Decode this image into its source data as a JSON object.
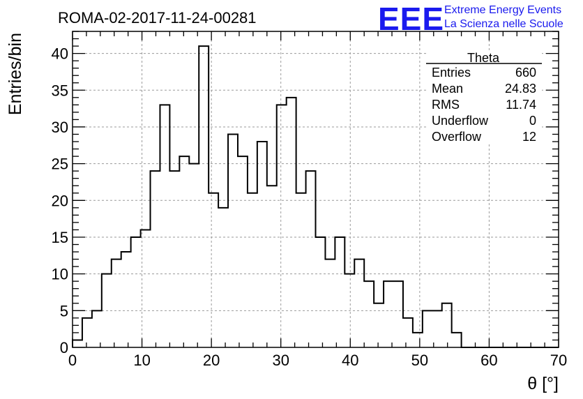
{
  "title": "ROMA-02-2017-11-24-00281",
  "logo": {
    "mark": "EEE",
    "line1": "Extreme Energy Events",
    "line2": "La Scienza nelle Scuole",
    "color": "#1a1aee"
  },
  "stats": {
    "name": "Theta",
    "rows": [
      {
        "label": "Entries",
        "value": "660"
      },
      {
        "label": "Mean",
        "value": "24.83"
      },
      {
        "label": "RMS",
        "value": "11.74"
      },
      {
        "label": "Underflow",
        "value": "0"
      },
      {
        "label": "Overflow",
        "value": "12"
      }
    ]
  },
  "chart_data": {
    "type": "bar",
    "histogram": true,
    "xlabel": "θ [°]",
    "ylabel": "Entries/bin",
    "xlim": [
      0,
      70
    ],
    "ylim": [
      0,
      43
    ],
    "bin_width": 1.4,
    "values": [
      1,
      4,
      5,
      10,
      12,
      13,
      15,
      16,
      24,
      33,
      24,
      26,
      25,
      41,
      21,
      19,
      29,
      26,
      21,
      28,
      22,
      33,
      34,
      21,
      24,
      15,
      12,
      15,
      10,
      12,
      9,
      6,
      9,
      9,
      4,
      2,
      5,
      5,
      6,
      2,
      0,
      0,
      0,
      0,
      0,
      0,
      0,
      0,
      0,
      0
    ],
    "xticks": [
      0,
      10,
      20,
      30,
      40,
      50,
      60,
      70
    ],
    "yticks": [
      0,
      5,
      10,
      15,
      20,
      25,
      30,
      35,
      40
    ],
    "grid": true,
    "line_color": "#000000"
  }
}
